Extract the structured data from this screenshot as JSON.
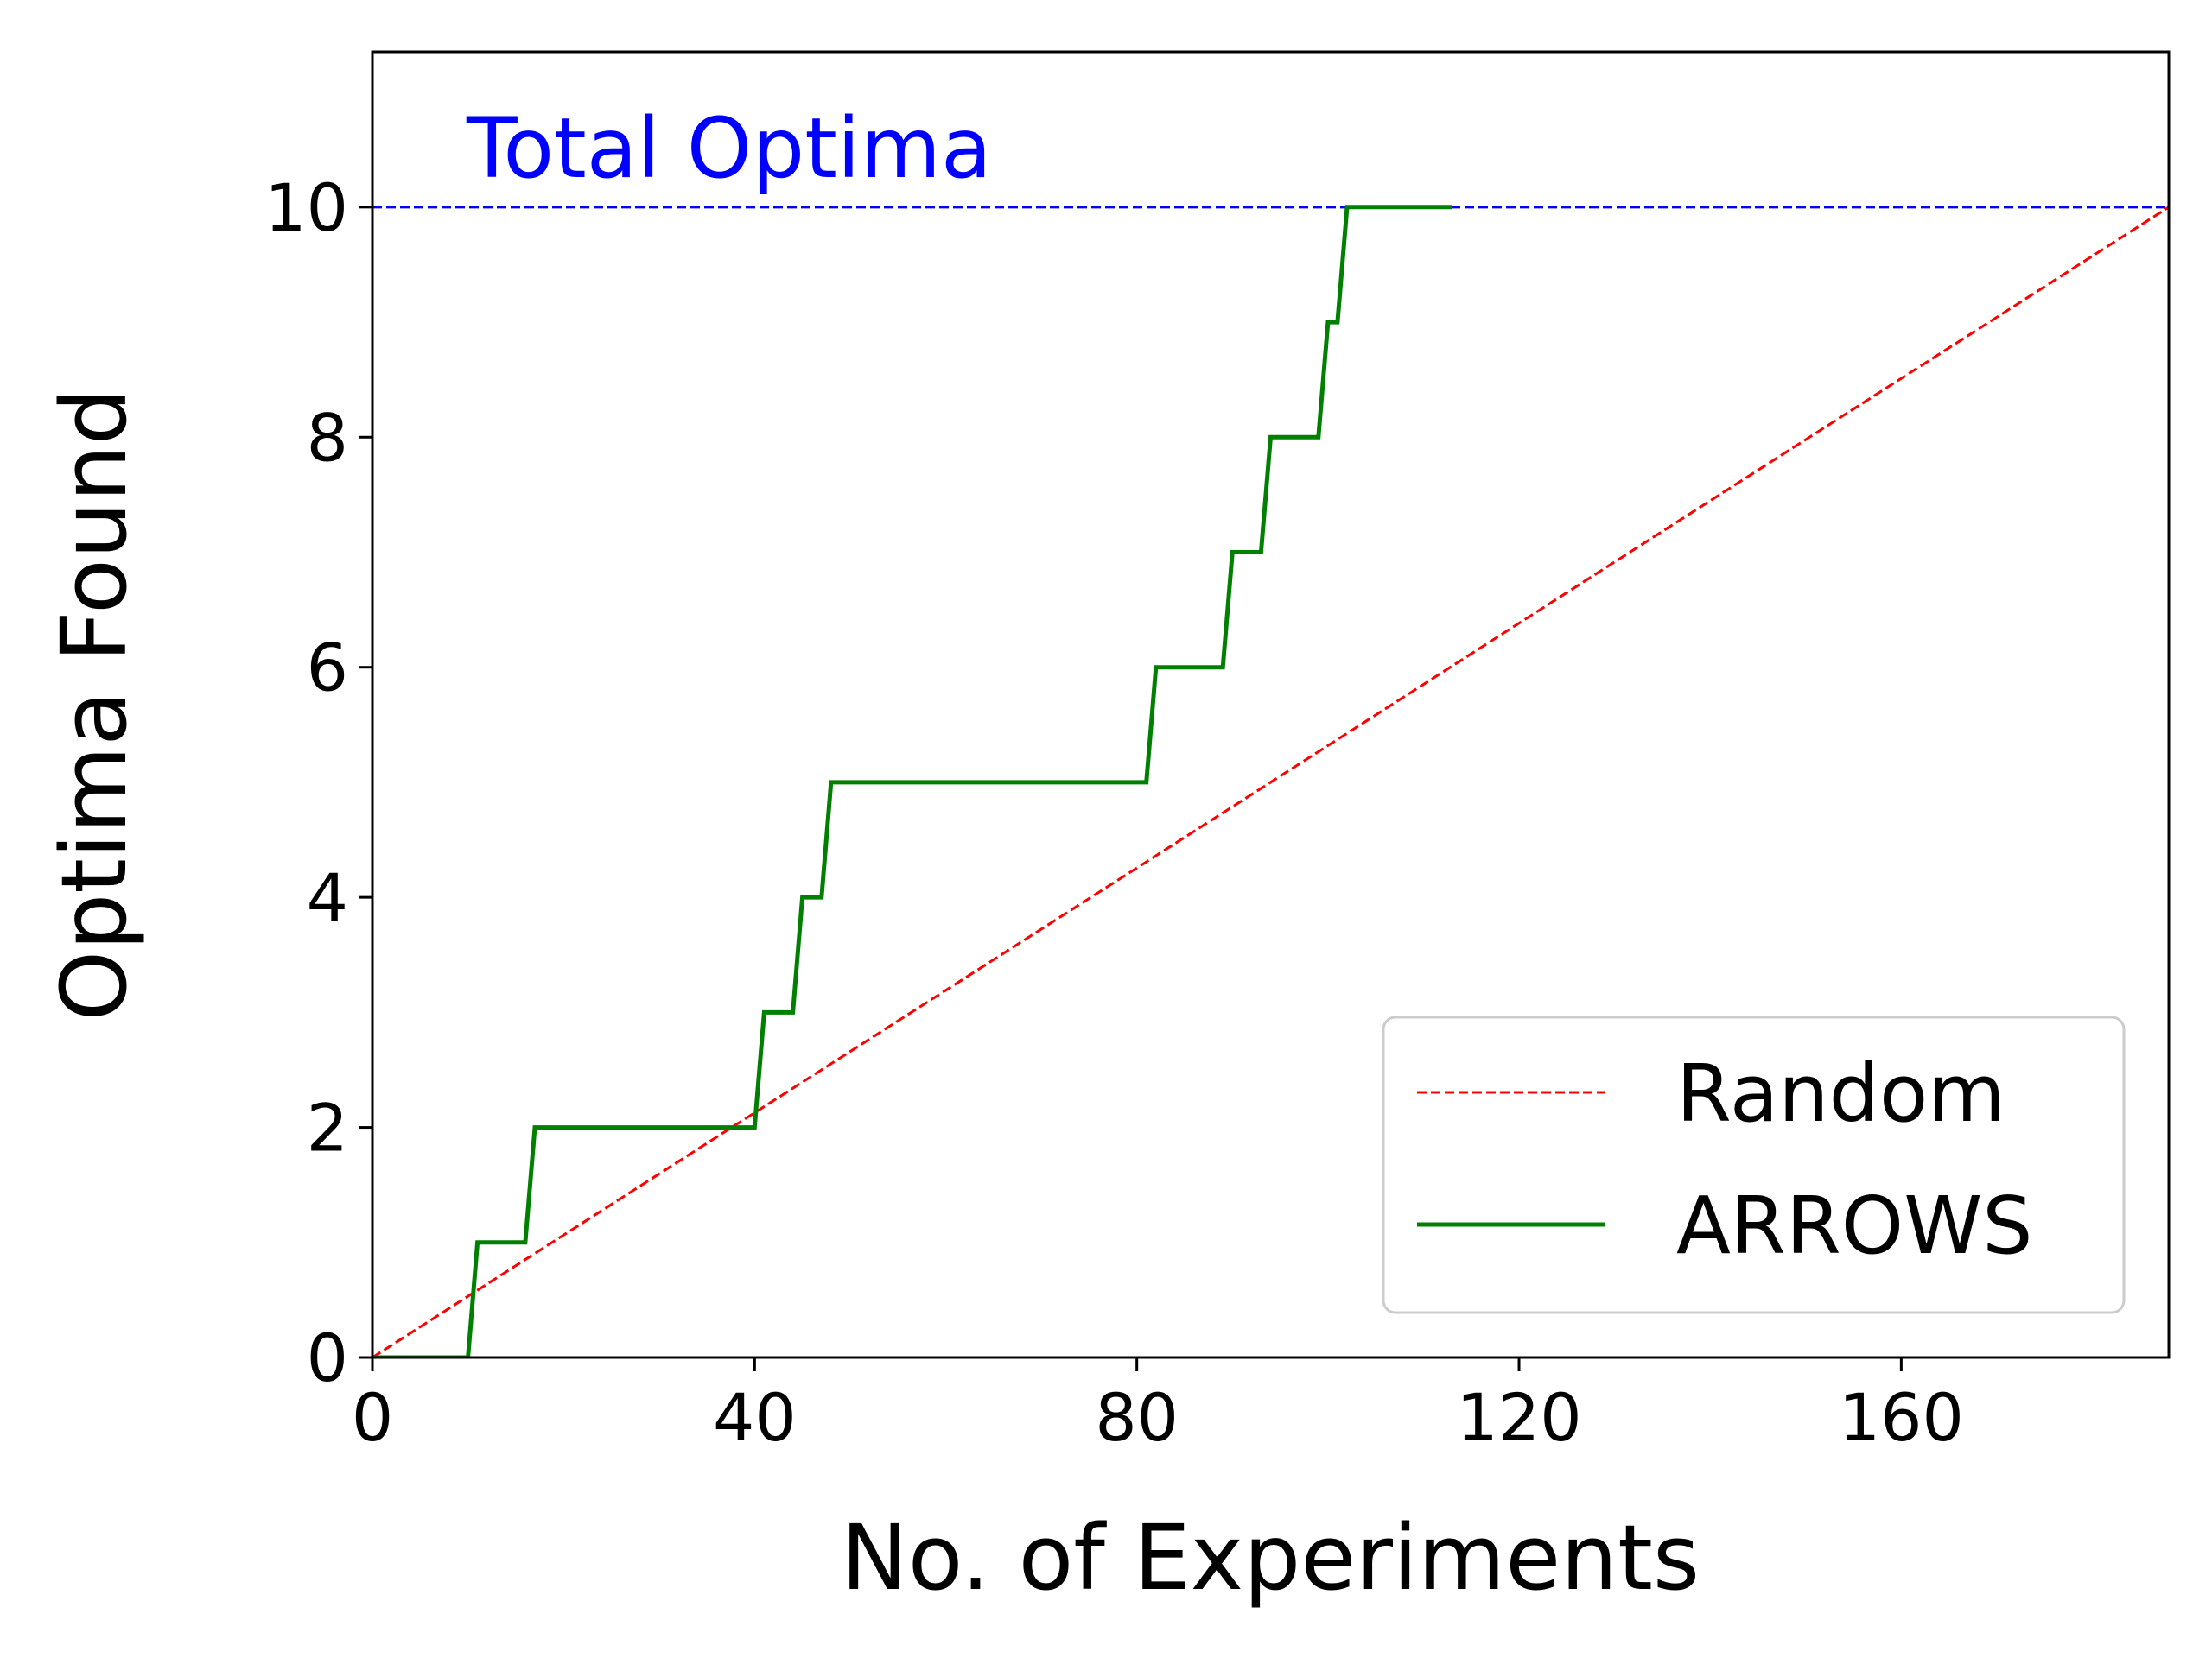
{
  "chart_data": {
    "type": "line",
    "xlabel": "No. of Experiments",
    "ylabel": "Optima Found",
    "xlim": [
      0,
      188
    ],
    "ylim": [
      0,
      11.35
    ],
    "xticks": [
      0,
      40,
      80,
      120,
      160
    ],
    "yticks": [
      0,
      2,
      4,
      6,
      8,
      10
    ],
    "grid": false,
    "legend_position": "bottom-right",
    "annotation": {
      "text": "Total Optima",
      "color": "#0000ff",
      "y": 10
    },
    "reference_line": {
      "y": 10,
      "color": "#0000ff",
      "style": "dashed"
    },
    "series": [
      {
        "name": "Random",
        "color": "#ff0000",
        "style": "dashed",
        "points": [
          [
            0,
            0
          ],
          [
            188,
            10
          ]
        ]
      },
      {
        "name": "ARROWS",
        "color": "#008000",
        "style": "solid",
        "points": [
          [
            0,
            0
          ],
          [
            10,
            0
          ],
          [
            11,
            1
          ],
          [
            16,
            1
          ],
          [
            17,
            2
          ],
          [
            40,
            2
          ],
          [
            41,
            3
          ],
          [
            44,
            3
          ],
          [
            45,
            4
          ],
          [
            47,
            4
          ],
          [
            48,
            5
          ],
          [
            81,
            5
          ],
          [
            82,
            6
          ],
          [
            89,
            6
          ],
          [
            90,
            7
          ],
          [
            93,
            7
          ],
          [
            94,
            8
          ],
          [
            99,
            8
          ],
          [
            100,
            9
          ],
          [
            101,
            9
          ],
          [
            102,
            10
          ],
          [
            113,
            10
          ]
        ]
      }
    ]
  }
}
